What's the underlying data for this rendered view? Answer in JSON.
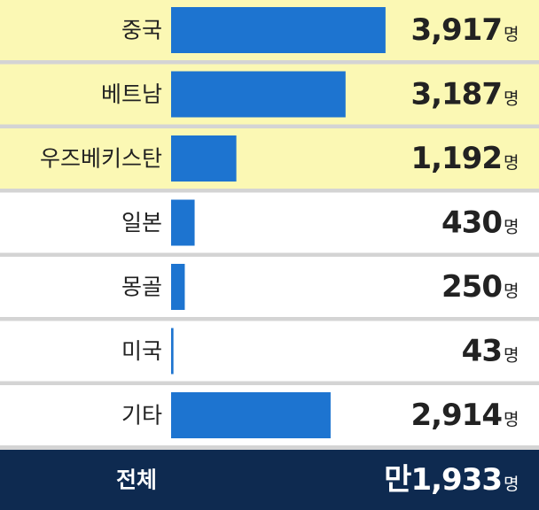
{
  "chart_data": {
    "type": "bar",
    "orientation": "horizontal",
    "categories": [
      "중국",
      "베트남",
      "우즈베키스탄",
      "일본",
      "몽골",
      "미국",
      "기타"
    ],
    "values": [
      3917,
      3187,
      1192,
      430,
      250,
      43,
      2914
    ],
    "value_labels": [
      "3,917",
      "3,187",
      "1,192",
      "430",
      "250",
      "43",
      "2,914"
    ],
    "unit": "명",
    "color": "#1d74d0",
    "row_colors": [
      "#fbf8b4",
      "#fbf8b4",
      "#fbf8b4",
      "#ffffff",
      "#ffffff",
      "#ffffff",
      "#ffffff"
    ],
    "xlim": [
      0,
      4000
    ],
    "total": {
      "name": "전체",
      "value": 11933,
      "value_label": "만1,933",
      "color": "#0e2a50"
    }
  }
}
